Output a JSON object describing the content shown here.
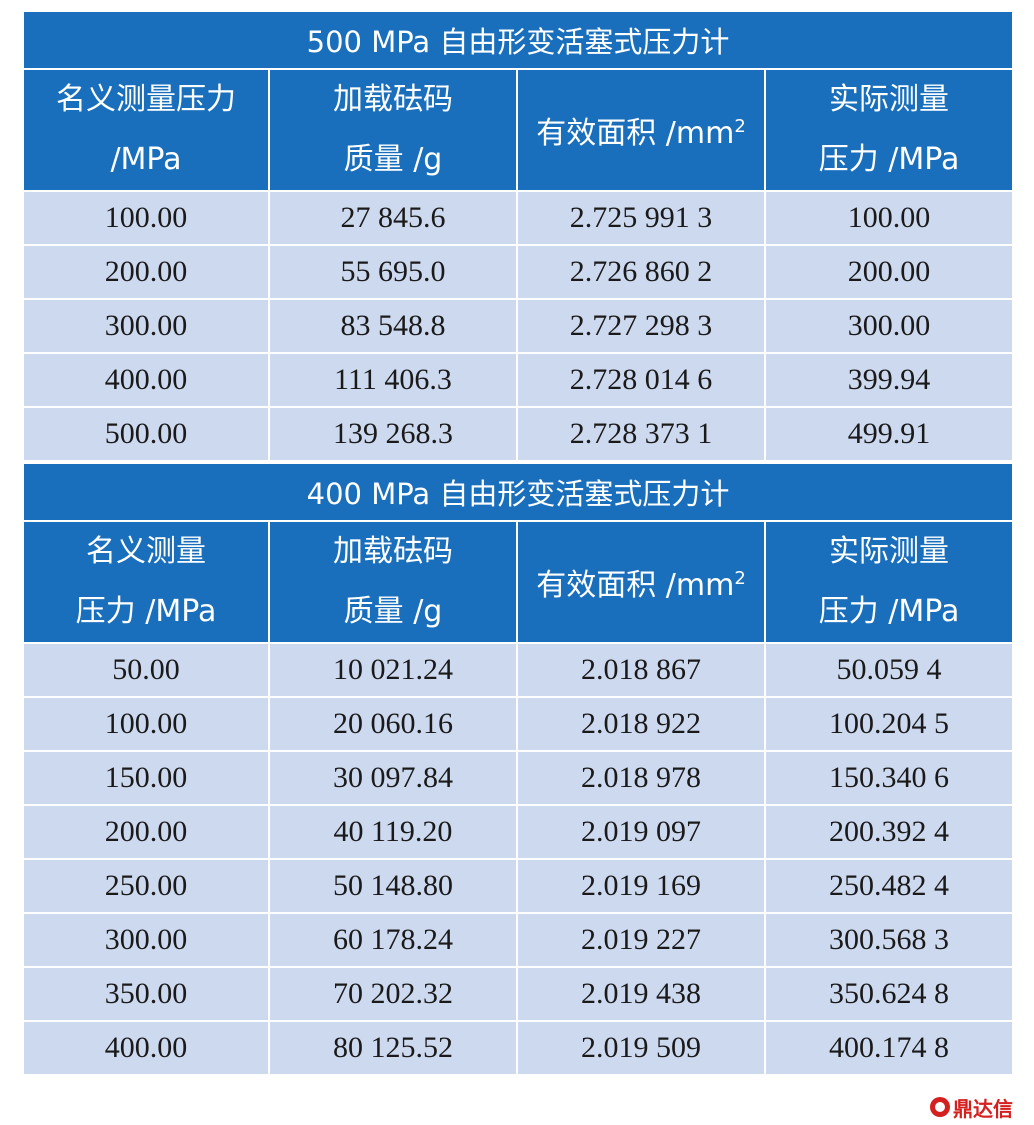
{
  "table1": {
    "title": "500 MPa 自由形变活塞式压力计",
    "headers": [
      [
        "名义测量压力",
        "/MPa"
      ],
      [
        "加载砝码",
        "质量 /g"
      ],
      [
        "有效面积 /mm",
        "2"
      ],
      [
        "实际测量",
        "压力 /MPa"
      ]
    ],
    "rows": [
      [
        "100.00",
        "27 845.6",
        "2.725 991 3",
        "100.00"
      ],
      [
        "200.00",
        "55 695.0",
        "2.726 860 2",
        "200.00"
      ],
      [
        "300.00",
        "83 548.8",
        "2.727 298 3",
        "300.00"
      ],
      [
        "400.00",
        "111 406.3",
        "2.728 014 6",
        "399.94"
      ],
      [
        "500.00",
        "139 268.3",
        "2.728 373 1",
        "499.91"
      ]
    ]
  },
  "table2": {
    "title": "400 MPa 自由形变活塞式压力计",
    "headers": [
      [
        "名义测量",
        "压力 /MPa"
      ],
      [
        "加载砝码",
        "质量 /g"
      ],
      [
        "有效面积 /mm",
        "2"
      ],
      [
        "实际测量",
        "压力 /MPa"
      ]
    ],
    "rows": [
      [
        "50.00",
        "10 021.24",
        "2.018 867",
        "50.059 4"
      ],
      [
        "100.00",
        "20 060.16",
        "2.018 922",
        "100.204 5"
      ],
      [
        "150.00",
        "30 097.84",
        "2.018 978",
        "150.340 6"
      ],
      [
        "200.00",
        "40 119.20",
        "2.019 097",
        "200.392 4"
      ],
      [
        "250.00",
        "50 148.80",
        "2.019 169",
        "250.482 4"
      ],
      [
        "300.00",
        "60 178.24",
        "2.019 227",
        "300.568 3"
      ],
      [
        "350.00",
        "70 202.32",
        "2.019 438",
        "350.624 8"
      ],
      [
        "400.00",
        "80 125.52",
        "2.019 509",
        "400.174 8"
      ]
    ]
  },
  "watermark": {
    "text": "鼎达信",
    "color": "#d4201e"
  },
  "colors": {
    "header_bg": "#1a6fbd",
    "row_bg": "#cdd9ef",
    "header_text": "#ffffff"
  }
}
